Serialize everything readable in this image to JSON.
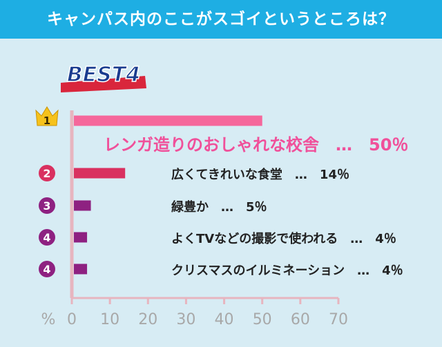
{
  "header": {
    "title": "キャンパス内のここがスゴイというところは？"
  },
  "badge": {
    "text": "BEST4"
  },
  "colors": {
    "header_bg": "#1eaee3",
    "background": "#d7ecf4",
    "axis": "#e7b5bf",
    "rank1": "#f5679b",
    "rank2": "#d93160",
    "rank3_4": "#8e2181",
    "rank1_text": "#f0509a",
    "badge_blue": "#1a3c8f",
    "badge_red": "#d9263c",
    "crown": "#f6c21b"
  },
  "chart_data": {
    "type": "bar",
    "orientation": "horizontal",
    "xlim": [
      0,
      70
    ],
    "ticks": [
      "0",
      "10",
      "20",
      "30",
      "40",
      "50",
      "60",
      "70"
    ],
    "xlabel": "%",
    "rows": [
      {
        "rank": "1",
        "label": "レンガ造りのおしゃれな校舎",
        "sep": "…",
        "value": 50,
        "value_text": "50％"
      },
      {
        "rank": "2",
        "label": "広くてきれいな食堂",
        "sep": "…",
        "value": 14,
        "value_text": "14％"
      },
      {
        "rank": "3",
        "label": "緑豊か",
        "sep": "…",
        "value": 5,
        "value_text": "5％"
      },
      {
        "rank": "4",
        "label": "よくTVなどの撮影で使われる",
        "sep": "…",
        "value": 4,
        "value_text": "4％"
      },
      {
        "rank": "4",
        "label": "クリスマスのイルミネーション",
        "sep": "…",
        "value": 4,
        "value_text": "4％"
      }
    ]
  }
}
